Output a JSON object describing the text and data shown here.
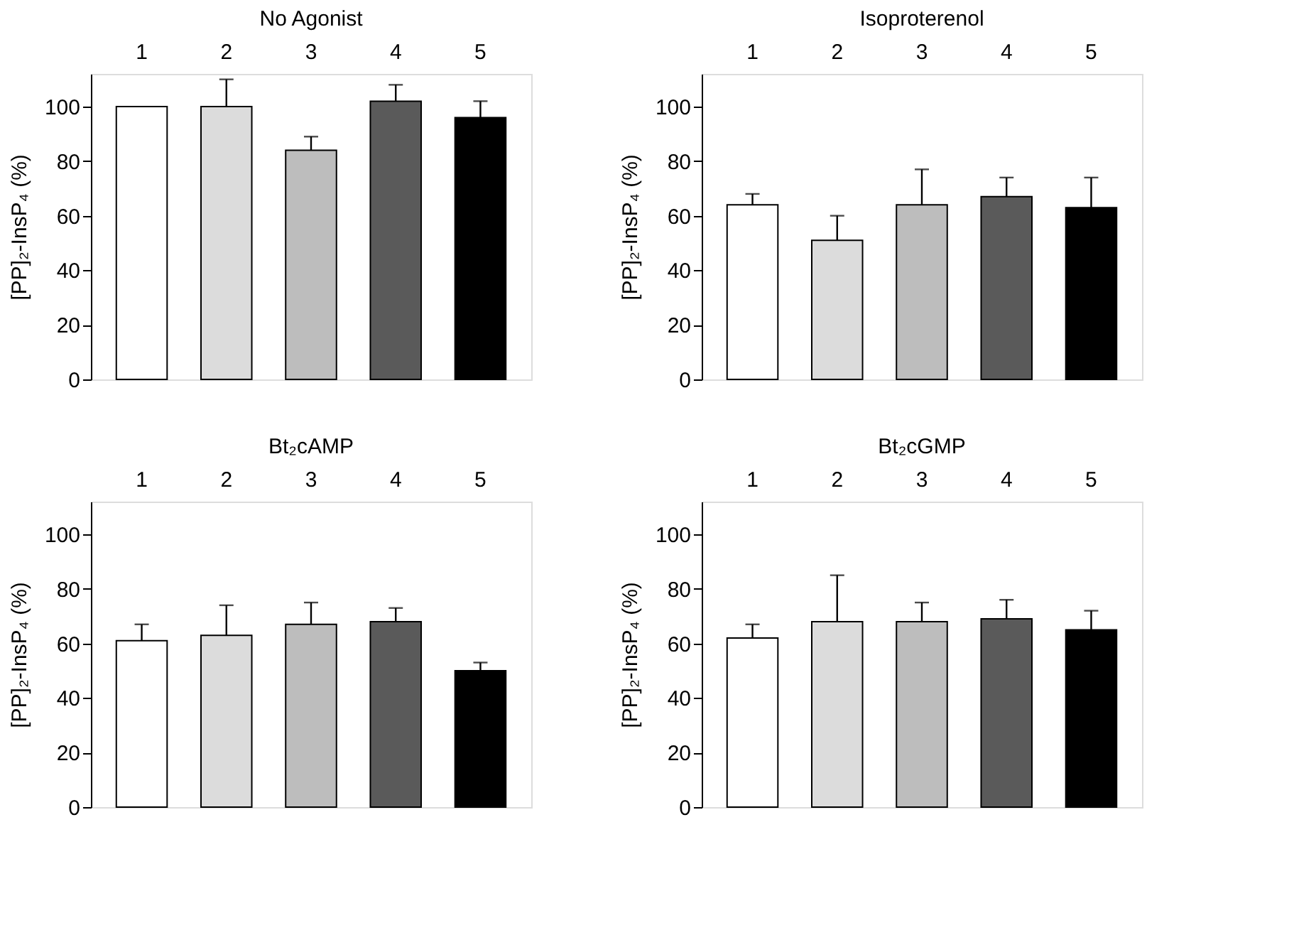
{
  "chart_data": [
    {
      "type": "bar",
      "title": "No Agonist",
      "ylabel": "[PP]₂-InsP₄ (%)",
      "categories": [
        "1",
        "2",
        "3",
        "4",
        "5"
      ],
      "values": [
        100,
        100,
        84,
        102,
        96
      ],
      "colors": [
        "#ffffff",
        "#dcdcdc",
        "#bdbdbd",
        "#5a5a5a",
        "#000000"
      ],
      "errors": [
        null,
        [
          100,
          110
        ],
        [
          84,
          89
        ],
        [
          102,
          108
        ],
        [
          96,
          102
        ]
      ],
      "ylim": [
        0,
        112
      ],
      "yticks": [
        0,
        20,
        40,
        60,
        80,
        100
      ],
      "grid": false,
      "legend": false
    },
    {
      "type": "bar",
      "title": "Isoproterenol",
      "ylabel": "[PP]₂-InsP₄ (%)",
      "categories": [
        "1",
        "2",
        "3",
        "4",
        "5"
      ],
      "values": [
        64,
        51,
        64,
        67,
        63
      ],
      "colors": [
        "#ffffff",
        "#dcdcdc",
        "#bdbdbd",
        "#5a5a5a",
        "#000000"
      ],
      "errors": [
        [
          64,
          68
        ],
        [
          51,
          60
        ],
        [
          64,
          77
        ],
        [
          67,
          74
        ],
        [
          63,
          74
        ]
      ],
      "ylim": [
        0,
        112
      ],
      "yticks": [
        0,
        20,
        40,
        60,
        80,
        100
      ],
      "grid": false,
      "legend": false
    },
    {
      "type": "bar",
      "title": "Bt₂cAMP",
      "ylabel": "[PP]₂-InsP₄ (%)",
      "categories": [
        "1",
        "2",
        "3",
        "4",
        "5"
      ],
      "values": [
        61,
        63,
        67,
        68,
        50
      ],
      "colors": [
        "#ffffff",
        "#dcdcdc",
        "#bdbdbd",
        "#5a5a5a",
        "#000000"
      ],
      "errors": [
        [
          61,
          67
        ],
        [
          63,
          74
        ],
        [
          67,
          75
        ],
        [
          68,
          73
        ],
        [
          50,
          53
        ]
      ],
      "ylim": [
        0,
        112
      ],
      "yticks": [
        0,
        20,
        40,
        60,
        80,
        100
      ],
      "grid": false,
      "legend": false
    },
    {
      "type": "bar",
      "title": "Bt₂cGMP",
      "ylabel": "[PP]₂-InsP₄ (%)",
      "categories": [
        "1",
        "2",
        "3",
        "4",
        "5"
      ],
      "values": [
        62,
        68,
        68,
        69,
        65
      ],
      "colors": [
        "#ffffff",
        "#dcdcdc",
        "#bdbdbd",
        "#5a5a5a",
        "#000000"
      ],
      "errors": [
        [
          62,
          67
        ],
        [
          68,
          85
        ],
        [
          68,
          75
        ],
        [
          69,
          76
        ],
        [
          65,
          72
        ]
      ],
      "ylim": [
        0,
        112
      ],
      "yticks": [
        0,
        20,
        40,
        60,
        80,
        100
      ],
      "grid": false,
      "legend": false
    }
  ]
}
